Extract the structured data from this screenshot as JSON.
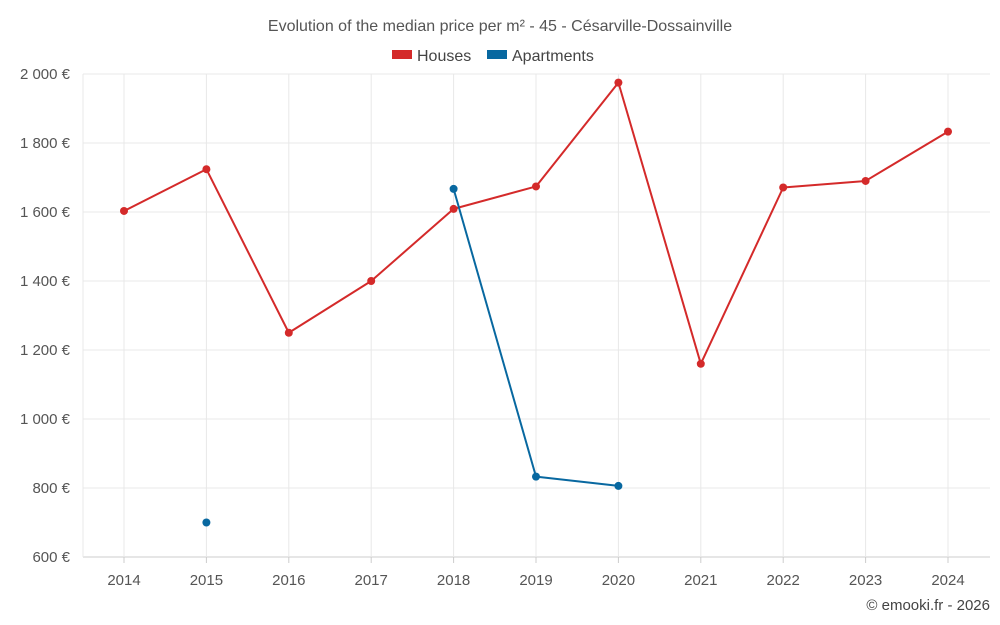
{
  "chart_data": {
    "type": "line",
    "title": "Evolution of the median price per m² - 45 - Césarville-Dossainville",
    "xlabel": "",
    "ylabel": "",
    "categories": [
      "2014",
      "2015",
      "2016",
      "2017",
      "2018",
      "2019",
      "2020",
      "2021",
      "2022",
      "2023",
      "2024"
    ],
    "ylim": [
      600,
      2000
    ],
    "yticks": [
      600,
      800,
      1000,
      1200,
      1400,
      1600,
      1800,
      2000
    ],
    "ytick_labels": [
      "600 €",
      "800 €",
      "1 000 €",
      "1 200 €",
      "1 400 €",
      "1 600 €",
      "1 800 €",
      "2 000 €"
    ],
    "grid": true,
    "legend_position": "top-center",
    "series": [
      {
        "name": "Houses",
        "color": "#d42a2a",
        "values": [
          1603,
          1724,
          1250,
          1400,
          1609,
          1674,
          1975,
          1160,
          1671,
          1690,
          1833
        ]
      },
      {
        "name": "Apartments",
        "color": "#0868a0",
        "values": [
          null,
          700,
          null,
          null,
          1667,
          833,
          806,
          null,
          null,
          null,
          null
        ]
      }
    ]
  },
  "credit": "© emooki.fr - 2026"
}
